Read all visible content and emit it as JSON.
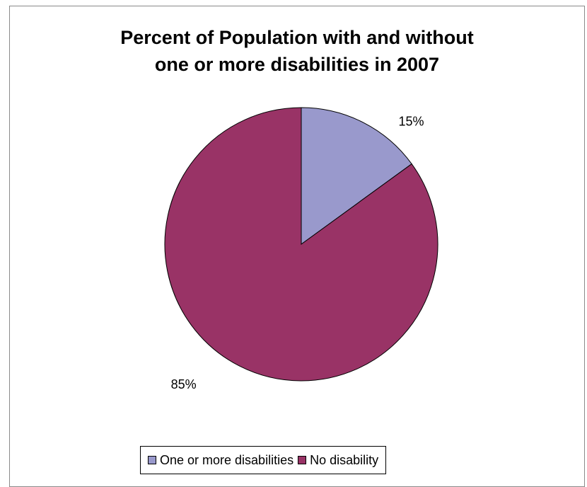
{
  "chart_data": {
    "type": "pie",
    "title_lines": [
      "Percent of Population with and without",
      "one or more disabilities in 2007"
    ],
    "categories": [
      "One or more disabilities",
      "No disability"
    ],
    "values": [
      15,
      85
    ],
    "labels": [
      "15%",
      "85%"
    ],
    "colors": [
      "#9999cc",
      "#993366"
    ],
    "legend_position": "bottom",
    "start_angle_deg": 0,
    "direction": "clockwise"
  }
}
